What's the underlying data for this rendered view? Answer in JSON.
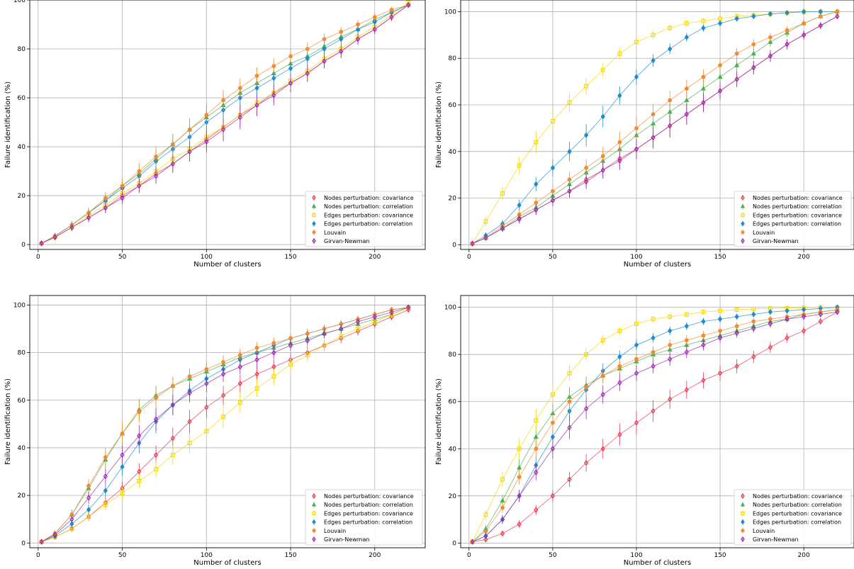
{
  "figure": {
    "series_styles": [
      {
        "key": "nodes_cov",
        "color": "#e8384f",
        "marker": "diamond-open"
      },
      {
        "key": "nodes_corr",
        "color": "#4caf50",
        "marker": "triangle"
      },
      {
        "key": "edges_cov",
        "color": "#f5d800",
        "marker": "square-open"
      },
      {
        "key": "edges_corr",
        "color": "#1f8bd1",
        "marker": "diamond-filled"
      },
      {
        "key": "louvain",
        "color": "#f28a30",
        "marker": "circle-filled"
      },
      {
        "key": "girvan",
        "color": "#9c27b0",
        "marker": "diamond-open"
      }
    ]
  },
  "chart_data": [
    {
      "type": "scatter",
      "panel": "top-left",
      "xlabel": "Number of clusters",
      "ylabel": "Failure identification (%)",
      "xlim": [
        -5,
        230
      ],
      "ylim": [
        -2,
        100
      ],
      "xticks": [
        0,
        50,
        100,
        150,
        200
      ],
      "yticks": [
        0,
        20,
        40,
        60,
        80,
        100
      ],
      "grid": true,
      "legend_position": "bottom-right",
      "x": [
        2,
        10,
        20,
        30,
        40,
        50,
        60,
        70,
        80,
        90,
        100,
        110,
        120,
        130,
        140,
        150,
        160,
        170,
        180,
        190,
        200,
        210,
        220
      ],
      "series": [
        {
          "name": "Nodes perturbation: covariance",
          "values": [
            0.5,
            3,
            7,
            11,
            15,
            20,
            24,
            29,
            33,
            38,
            43,
            48,
            53,
            57,
            62,
            66,
            70,
            75,
            79,
            84,
            88,
            93,
            98
          ]
        },
        {
          "name": "Nodes perturbation: correlation",
          "values": [
            0.5,
            3.5,
            8,
            13,
            18,
            24,
            29,
            35,
            41,
            47,
            52,
            57,
            62,
            66,
            70,
            74,
            77,
            81,
            85,
            88,
            92,
            95,
            98
          ]
        },
        {
          "name": "Edges perturbation: covariance",
          "values": [
            0.5,
            3,
            7,
            12,
            16,
            21,
            25,
            30,
            35,
            39,
            44,
            48,
            53,
            58,
            62,
            67,
            71,
            76,
            80,
            85,
            89,
            94,
            99
          ]
        },
        {
          "name": "Edges perturbation: correlation",
          "values": [
            0.5,
            3.5,
            8,
            13,
            18,
            23,
            28,
            34,
            39,
            44,
            50,
            55,
            60,
            64,
            68,
            72,
            76,
            80,
            84,
            88,
            91,
            95,
            98
          ]
        },
        {
          "name": "Louvain",
          "values": [
            0.5,
            3.5,
            8,
            13,
            19,
            24,
            30,
            36,
            41,
            47,
            53,
            59,
            64,
            69,
            73,
            77,
            80,
            84,
            87,
            90,
            93,
            96,
            98
          ]
        },
        {
          "name": "Girvan-Newman",
          "values": [
            0.5,
            3,
            7,
            11,
            15,
            19,
            24,
            28,
            33,
            38,
            42,
            47,
            52,
            57,
            61,
            66,
            70,
            75,
            79,
            84,
            88,
            93,
            98
          ]
        }
      ]
    },
    {
      "type": "scatter",
      "panel": "top-right",
      "xlabel": "Number of clusters",
      "ylabel": "Failure identification (%)",
      "xlim": [
        -5,
        230
      ],
      "ylim": [
        -2,
        105
      ],
      "xticks": [
        0,
        50,
        100,
        150,
        200
      ],
      "yticks": [
        0,
        20,
        40,
        60,
        80,
        100
      ],
      "grid": true,
      "legend_position": "bottom-right",
      "x": [
        2,
        10,
        20,
        30,
        40,
        50,
        60,
        70,
        80,
        90,
        100,
        110,
        120,
        130,
        140,
        150,
        160,
        170,
        180,
        190,
        200,
        210,
        220
      ],
      "series": [
        {
          "name": "Nodes perturbation: covariance",
          "values": [
            0.5,
            3,
            7,
            11,
            15,
            19,
            23,
            28,
            32,
            37,
            41,
            46,
            51,
            56,
            61,
            66,
            71,
            76,
            81,
            86,
            90,
            94,
            98
          ]
        },
        {
          "name": "Nodes perturbation: correlation",
          "values": [
            0.5,
            3,
            7,
            12,
            16,
            21,
            26,
            31,
            36,
            41,
            47,
            52,
            57,
            62,
            67,
            72,
            77,
            82,
            87,
            91,
            95,
            98,
            100
          ]
        },
        {
          "name": "Edges perturbation: covariance",
          "values": [
            0.5,
            10,
            22,
            34,
            44,
            53,
            61,
            68,
            75,
            82,
            87,
            90,
            93,
            95,
            96,
            97,
            98,
            98.5,
            99,
            99.5,
            99.8,
            100,
            100
          ]
        },
        {
          "name": "Edges perturbation: correlation",
          "values": [
            0.5,
            4,
            9,
            17,
            26,
            33,
            40,
            47,
            55,
            64,
            72,
            79,
            84,
            89,
            93,
            95,
            97,
            98,
            99,
            99.5,
            100,
            100,
            100
          ]
        },
        {
          "name": "Louvain",
          "values": [
            0.5,
            3,
            8,
            13,
            18,
            23,
            28,
            33,
            38,
            44,
            50,
            56,
            62,
            67,
            72,
            77,
            82,
            86,
            89,
            92,
            95,
            98,
            100
          ]
        },
        {
          "name": "Girvan-Newman",
          "values": [
            0.5,
            3,
            7,
            11,
            15,
            19,
            23,
            27,
            32,
            36,
            41,
            46,
            51,
            56,
            61,
            66,
            71,
            76,
            81,
            86,
            90,
            94,
            98
          ]
        }
      ]
    },
    {
      "type": "scatter",
      "panel": "bottom-left",
      "xlabel": "Number of clusters",
      "ylabel": "Failure identification (%)",
      "xlim": [
        -5,
        230
      ],
      "ylim": [
        -2,
        104
      ],
      "xticks": [
        0,
        50,
        100,
        150,
        200
      ],
      "yticks": [
        0,
        20,
        40,
        60,
        80,
        100
      ],
      "grid": true,
      "legend_position": "bottom-right",
      "x": [
        2,
        10,
        20,
        30,
        40,
        50,
        60,
        70,
        80,
        90,
        100,
        110,
        120,
        130,
        140,
        150,
        160,
        170,
        180,
        190,
        200,
        210,
        220
      ],
      "series": [
        {
          "name": "Nodes perturbation: covariance",
          "values": [
            0.5,
            2.5,
            6,
            11,
            17,
            23,
            30,
            37,
            44,
            51,
            57,
            62,
            67,
            71,
            74,
            77,
            80,
            83,
            86,
            89,
            92,
            95,
            98
          ]
        },
        {
          "name": "Nodes perturbation: correlation",
          "values": [
            0.5,
            4,
            12,
            23,
            35,
            46,
            56,
            62,
            66,
            69,
            72,
            75,
            78,
            80,
            82,
            84,
            86,
            88,
            90,
            92,
            94,
            96,
            99
          ]
        },
        {
          "name": "Edges perturbation: covariance",
          "values": [
            0.5,
            2.5,
            6,
            11,
            16,
            21,
            26,
            31,
            37,
            42,
            47,
            53,
            59,
            65,
            70,
            75,
            79,
            83,
            87,
            90,
            93,
            96,
            99
          ]
        },
        {
          "name": "Edges perturbation: correlation",
          "values": [
            0.5,
            3,
            8,
            14,
            22,
            32,
            42,
            51,
            58,
            64,
            69,
            73,
            77,
            80,
            83,
            86,
            88,
            90,
            92,
            94,
            96,
            98,
            99
          ]
        },
        {
          "name": "Louvain",
          "values": [
            0.5,
            4,
            12,
            24,
            36,
            46,
            55,
            61,
            66,
            70,
            73,
            76,
            79,
            82,
            84,
            86,
            88,
            90,
            92,
            94,
            96,
            98,
            99
          ]
        },
        {
          "name": "Girvan-Newman",
          "values": [
            0.5,
            3.5,
            10,
            19,
            28,
            37,
            45,
            52,
            58,
            63,
            67,
            71,
            74,
            77,
            80,
            83,
            85,
            88,
            90,
            93,
            95,
            97,
            99
          ]
        }
      ]
    },
    {
      "type": "scatter",
      "panel": "bottom-right",
      "xlabel": "Number of clusters",
      "ylabel": "Failure identification (%)",
      "xlim": [
        -5,
        230
      ],
      "ylim": [
        -2,
        105
      ],
      "xticks": [
        0,
        50,
        100,
        150,
        200
      ],
      "yticks": [
        0,
        20,
        40,
        60,
        80,
        100
      ],
      "grid": true,
      "legend_position": "bottom-right",
      "x": [
        2,
        10,
        20,
        30,
        40,
        50,
        60,
        70,
        80,
        90,
        100,
        110,
        120,
        130,
        140,
        150,
        160,
        170,
        180,
        190,
        200,
        210,
        220
      ],
      "series": [
        {
          "name": "Nodes perturbation: covariance",
          "values": [
            0.5,
            1.5,
            4,
            8,
            14,
            20,
            27,
            34,
            40,
            46,
            51,
            56,
            61,
            65,
            69,
            72,
            75,
            79,
            83,
            87,
            90,
            94,
            98
          ]
        },
        {
          "name": "Nodes perturbation: correlation",
          "values": [
            0.5,
            6,
            18,
            32,
            45,
            55,
            62,
            67,
            71,
            74,
            77,
            80,
            82,
            84,
            86,
            88,
            90,
            92,
            94,
            95,
            97,
            98,
            99
          ]
        },
        {
          "name": "Edges perturbation: covariance",
          "values": [
            0.5,
            12,
            27,
            40,
            52,
            63,
            72,
            80,
            86,
            90,
            93,
            95,
            96,
            97,
            98,
            98.5,
            99,
            99.3,
            99.5,
            99.7,
            99.8,
            100,
            100
          ]
        },
        {
          "name": "Edges perturbation: correlation",
          "values": [
            0.5,
            3,
            10,
            20,
            33,
            45,
            56,
            65,
            73,
            79,
            84,
            87,
            90,
            92,
            94,
            95,
            96,
            97,
            98,
            98.5,
            99,
            99.5,
            100
          ]
        },
        {
          "name": "Louvain",
          "values": [
            0.5,
            5,
            15,
            28,
            40,
            51,
            60,
            66,
            71,
            75,
            78,
            81,
            84,
            86,
            88,
            90,
            92,
            94,
            95,
            96,
            97,
            98,
            99
          ]
        },
        {
          "name": "Girvan-Newman",
          "values": [
            0.5,
            3,
            10,
            20,
            30,
            40,
            49,
            57,
            63,
            68,
            72,
            75,
            78,
            81,
            84,
            87,
            89,
            91,
            93,
            95,
            96,
            97,
            98
          ]
        }
      ]
    }
  ]
}
